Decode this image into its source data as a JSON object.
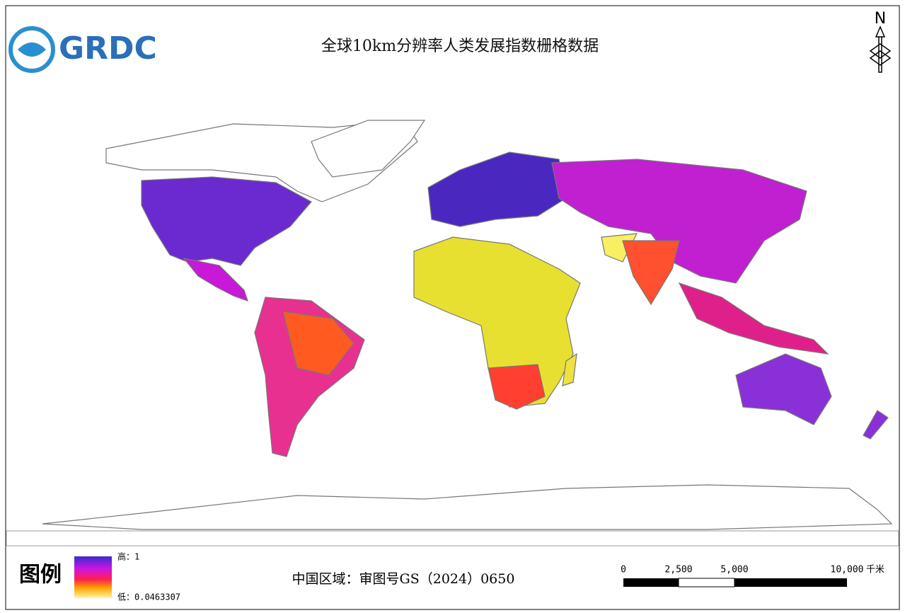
{
  "logo": "GRDC",
  "title": "全球10km分辨率人类发展指数栅格数据",
  "north": "N",
  "legend": {
    "title": "图例",
    "high": "高：1",
    "low": "低：0.0463307"
  },
  "review_number": "中国区域：审图号GS（2024）0650",
  "scale_bar": {
    "labels": [
      "0",
      "2,500",
      "5,000",
      "10,000"
    ],
    "unit": "千米"
  }
}
